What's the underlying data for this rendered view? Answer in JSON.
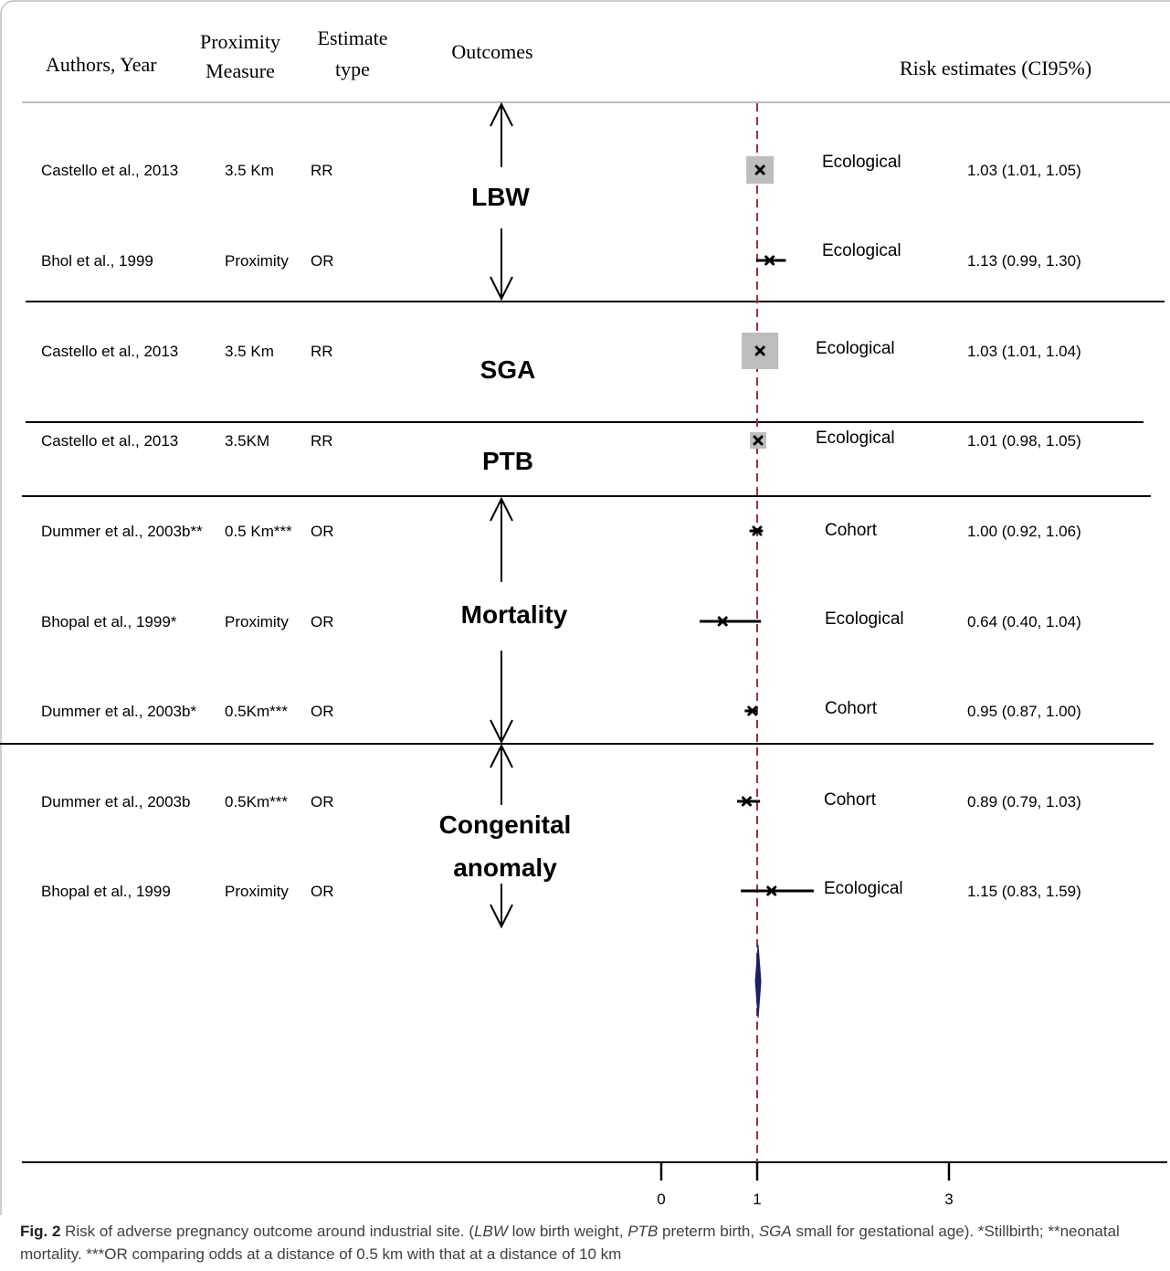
{
  "headers": {
    "authors": "Authors, Year",
    "proximity_l1": "Proximity",
    "proximity_l2": "Measure",
    "estimate_l1": "Estimate",
    "estimate_l2": "type",
    "outcomes": "Outcomes",
    "risk": "Risk estimates  (CI95%)"
  },
  "outcome_labels": [
    {
      "lines": [
        "LBW"
      ]
    },
    {
      "lines": [
        "SGA"
      ]
    },
    {
      "lines": [
        "PTB"
      ]
    },
    {
      "lines": [
        "Mortality"
      ]
    },
    {
      "lines": [
        "Congenital",
        "anomaly"
      ]
    }
  ],
  "chart_data": {
    "type": "forest",
    "reference_line": 1,
    "x_ticks": [
      0,
      1,
      3
    ],
    "rows": [
      {
        "author": "Castello et al., 2013",
        "proximity": "3.5 Km",
        "estimate_type": "RR",
        "outcome": "LBW",
        "design": "Ecological",
        "estimate": 1.03,
        "ci_low": 1.01,
        "ci_high": 1.05,
        "label": "1.03 (1.01, 1.05)",
        "box": true
      },
      {
        "author": "Bhol et al., 1999",
        "proximity": "Proximity",
        "estimate_type": "OR",
        "outcome": "LBW",
        "design": "Ecological",
        "estimate": 1.13,
        "ci_low": 0.99,
        "ci_high": 1.3,
        "label": "1.13 (0.99, 1.30)",
        "box": false
      },
      {
        "author": "Castello et al., 2013",
        "proximity": "3.5 Km",
        "estimate_type": "RR",
        "outcome": "SGA",
        "design": "Ecological",
        "estimate": 1.03,
        "ci_low": 1.01,
        "ci_high": 1.04,
        "label": "1.03 (1.01, 1.04)",
        "box": true
      },
      {
        "author": "Castello et al., 2013",
        "proximity": "3.5KM",
        "estimate_type": "RR",
        "outcome": "PTB",
        "design": "Ecological",
        "estimate": 1.01,
        "ci_low": 0.98,
        "ci_high": 1.05,
        "label": "1.01 (0.98, 1.05)",
        "box": true
      },
      {
        "author": "Dummer et al., 2003b**",
        "proximity": "0.5 Km***",
        "estimate_type": "OR",
        "outcome": "Mortality",
        "design": "Cohort",
        "estimate": 1.0,
        "ci_low": 0.92,
        "ci_high": 1.06,
        "label": "1.00 (0.92, 1.06)",
        "box": false
      },
      {
        "author": "Bhopal et al., 1999*",
        "proximity": "Proximity",
        "estimate_type": "OR",
        "outcome": "Mortality",
        "design": "Ecological",
        "estimate": 0.64,
        "ci_low": 0.4,
        "ci_high": 1.04,
        "label": "0.64 (0.40, 1.04)",
        "box": false
      },
      {
        "author": "Dummer et al., 2003b*",
        "proximity": "0.5Km***",
        "estimate_type": "OR",
        "outcome": "Mortality",
        "design": "Cohort",
        "estimate": 0.95,
        "ci_low": 0.87,
        "ci_high": 1.0,
        "label": "0.95 (0.87, 1.00)",
        "box": false
      },
      {
        "author": "Dummer et al., 2003b",
        "proximity": "0.5Km***",
        "estimate_type": "OR",
        "outcome": "Congenital anomaly",
        "design": "Cohort",
        "estimate": 0.89,
        "ci_low": 0.79,
        "ci_high": 1.03,
        "label": "0.89 (0.79, 1.03)",
        "box": false
      },
      {
        "author": "Bhopal et al., 1999",
        "proximity": "Proximity",
        "estimate_type": "OR",
        "outcome": "Congenital anomaly",
        "design": "Ecological",
        "estimate": 1.15,
        "ci_low": 0.83,
        "ci_high": 1.59,
        "label": "1.15 (0.83, 1.59)",
        "box": false
      }
    ]
  },
  "caption": {
    "fig_label": "Fig. 2",
    "text_a": "  Risk of adverse pregnancy outcome around industrial site. (",
    "abbr1": "LBW",
    "text_b": " low birth weight, ",
    "abbr2": "PTB",
    "text_c": " preterm birth, ",
    "abbr3": "SGA",
    "text_d": " small for gestational age). *Stillbirth; **neonatal mortality. ***OR comparing odds at a distance of 0.5 km with that at a distance of 10 km"
  }
}
